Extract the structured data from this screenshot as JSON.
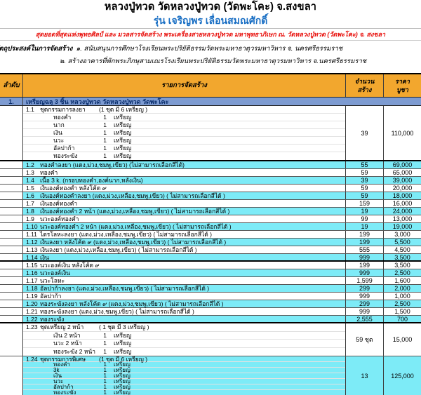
{
  "header": {
    "title": "หลวงปู่ทวด วัดหลวงปู่ทวด (วัดพะโคะ) จ.สงขลา",
    "subtitle": "รุ่น เจริญพร เลื่อนสมณศักดิ์",
    "tagline": "สุดยอดที่สุดแห่งพุทธศิลป์ และ มวลสารจัดสร้าง พระเครื่องสายหลวงปู่ทวด มหาพุทธาภิเษก ณ. วัดหลวงปู่ทวด (วัดพะโคะ) จ. สงขลา",
    "purpose_label": "วัตถุประสงค์ในการจัดสร้าง",
    "purpose_1": "๑. สนับสนุนการศึกษาโรงเรียนพระปริยัติธรรมวัดพระมหาธาตุวรมหาวิหาร  จ. นครศรีธรรมราช",
    "purpose_2": "๒. สร้างอาคารที่พักพระภิกษุสามเณรโรงเรียนพระปริยัติธรรมวัดพระมหาธาตุวรมหาวิหาร  จ.นครศรีธรรมราช"
  },
  "table": {
    "columns": {
      "no": "ลำดับ",
      "item": "รายการจัดสร้าง",
      "qty_line1": "จำนวน",
      "qty_line2": "สร้าง",
      "price_line1": "ราคา",
      "price_line2": "บูชา"
    },
    "section": {
      "no": "1.",
      "title": "เหรียญฉลุ 3 ชิ้น หลวงปู่ทวด วัดหลวงปู่ทวด วัดพะโคะ"
    },
    "rows": [
      {
        "no": "1.1",
        "set": {
          "name": "ชุดกรรมการลงยา",
          "note": "(1 ชุด มี 6 เหรียญ )",
          "items": [
            {
              "label": "ทองคำ",
              "count": "1",
              "unit": "เหรียญ"
            },
            {
              "label": "นาก",
              "count": "1",
              "unit": "เหรียญ"
            },
            {
              "label": "เงิน",
              "count": "1",
              "unit": "เหรียญ"
            },
            {
              "label": "นวะ",
              "count": "1",
              "unit": "เหรียญ"
            },
            {
              "label": "อัลปาก้า",
              "count": "1",
              "unit": "เหรียญ"
            },
            {
              "label": "ทองระฆัง",
              "count": "1",
              "unit": "เหรียญ"
            }
          ]
        },
        "qty": "39",
        "price": "110,000",
        "alt": false,
        "group_end": true
      },
      {
        "no": "1.2",
        "text": "ทองคำลงยา (แดง,ม่วง,ชมพู,เขียว) (ไม่สามารถเลือกสีได้)",
        "qty": "55",
        "price": "69,000",
        "alt": true
      },
      {
        "no": "1.3",
        "text": "ทองคำ",
        "qty": "59",
        "price": "65,000",
        "alt": false
      },
      {
        "no": "1.4",
        "text": "เนื้อ 3 k.   (กรอบทองคำ,องค์นาก,หลังเงิน)",
        "qty": "39",
        "price": "39,000",
        "alt": true
      },
      {
        "no": "1.5",
        "text": "เงินองค์ทองคำ หลังโค้ด ๙",
        "qty": "59",
        "price": "20,000",
        "alt": false
      },
      {
        "no": "1.6",
        "text": "เงินองค์ทองคำลงยา    (แดง,ม่วง,เหลือง,ชมพู,เขียว) ( ไม่สามารถเลือกสีได้ )",
        "qty": "59",
        "price": "18,000",
        "alt": true
      },
      {
        "no": "1.7",
        "text": "เงินองค์ทองคำ",
        "qty": "159",
        "price": "16,000",
        "alt": false
      },
      {
        "no": "1.8",
        "text": "เงินองค์ทองคำ 2 หน้า   (แดง,ม่วง,เหลือง,ชมพู,เขียว) ( ไม่สามารถเลือกสีได้ )",
        "qty": "19",
        "price": "24,000",
        "alt": true
      },
      {
        "no": "1.9",
        "text": "นวะองค์ทองคำ",
        "qty": "99",
        "price": "13,000",
        "alt": false
      },
      {
        "no": "1.10",
        "text": "นวะองค์ทองคำ 2 หน้า   (แดง,ม่วง,เหลือง,ชมพู,เขียว) ( ไม่สามารถเลือกสีได้ )",
        "qty": "19",
        "price": "19,000",
        "alt": true
      },
      {
        "no": "1.11",
        "text": "ไตรโลหะลงยา    (แดง,ม่วง,เหลือง,ชมพู,เขียว) ( ไม่สามารถเลือกสีได้ )",
        "qty": "199",
        "price": "3,000",
        "alt": false
      },
      {
        "no": "1.12",
        "text": "เงินลงยา หลังโค้ด ๙  (แดง,ม่วง,เหลือง,ชมพู,เขียว) ( ไม่สามารถเลือกสีได้ )",
        "qty": "199",
        "price": "5,500",
        "alt": true
      },
      {
        "no": "1.13",
        "text": "เงินลงยา    (แดง,ม่วง,เหลือง,ชมพู,เขียว) ( ไม่สามารถเลือกสีได้ )",
        "qty": "555",
        "price": "4,500",
        "alt": false
      },
      {
        "no": "1.14",
        "text": "เงิน",
        "qty": "999",
        "price": "3,500",
        "alt": true,
        "group_end": true
      },
      {
        "no": "1.15",
        "text": "นวะองค์เงิน หลังโค้ด ๙",
        "qty": "199",
        "price": "3,500",
        "alt": false
      },
      {
        "no": "1.16",
        "text": "นวะองค์เงิน",
        "qty": "999",
        "price": "2,500",
        "alt": true
      },
      {
        "no": "1.17",
        "text": "นวะโลหะ",
        "qty": "1,599",
        "price": "1,600",
        "alt": false
      },
      {
        "no": "1.18",
        "text": "อัลปาก้าลงยา  (แดง,ม่วง,เหลือง,ชมพู,เขียว) ( ไม่สามารถเลือกสีได้ )",
        "qty": "299",
        "price": "2,000",
        "alt": true
      },
      {
        "no": "1.19",
        "text": "อัลปาก้า",
        "qty": "999",
        "price": "1,000",
        "alt": false
      },
      {
        "no": "1.20",
        "text": "ทองระฆังลงยา  หลังโค้ด ๙ (แดง,ม่วง,ชมพู,เขียว)  ( ไม่สามารถเลือกสีได้ )",
        "qty": "299",
        "price": "2,500",
        "alt": true
      },
      {
        "no": "1.21",
        "text": "ทองระฆังลงยา (แดง,ม่วง,ชมพู,เขียว)  ( ไม่สามารถเลือกสีได้ )",
        "qty": "999",
        "price": "1,500",
        "alt": false
      },
      {
        "no": "1.22",
        "text": "ทองระฆัง",
        "qty": "2,555",
        "price": "700",
        "alt": true,
        "group_end": true
      },
      {
        "no": "1.23",
        "set": {
          "name": "ชุดเหรียญ 2 หน้า",
          "note": "( 1 ชุด มี 3 เหรียญ )",
          "items": [
            {
              "label": "เงิน 2 หน้า",
              "count": "1",
              "unit": "เหรียญ"
            },
            {
              "label": "นวะ 2 หน้า",
              "count": "1",
              "unit": "เหรียญ"
            },
            {
              "label": "ทองระฆัง 2 หน้า",
              "count": "1",
              "unit": "เหรียญ"
            }
          ]
        },
        "qty": "59 ชุด",
        "price": "15,000",
        "alt": false
      },
      {
        "no": "1.24",
        "set": {
          "name": "ชุดกรรมการพิเศษ",
          "note": "(1 ชุด มี 6 เหรียญ )",
          "items": [
            {
              "label": "ทองคำ",
              "count": "1",
              "unit": "เหรียญ"
            },
            {
              "label": "3k",
              "count": "1",
              "unit": "เหรียญ"
            },
            {
              "label": "เงิน",
              "count": "1",
              "unit": "เหรียญ"
            },
            {
              "label": "นวะ",
              "count": "1",
              "unit": "เหรียญ"
            },
            {
              "label": "อัลปาก้า",
              "count": "1",
              "unit": "เหรียญ"
            },
            {
              "label": "ทองระฆัง",
              "count": "1",
              "unit": "เหรียญ"
            }
          ]
        },
        "qty": "13",
        "price": "125,000",
        "alt": true,
        "compress": true
      }
    ]
  },
  "colors": {
    "header_bg": "#F2A72E",
    "section_bg": "#7D9BD1",
    "section_text": "#0B2F6E",
    "row_alt_bg": "#7DEBF7",
    "subtitle_blue": "#1A6FC4",
    "tagline_red": "#E8100C",
    "grid_border": "#575757",
    "frame_border": "#000000"
  }
}
